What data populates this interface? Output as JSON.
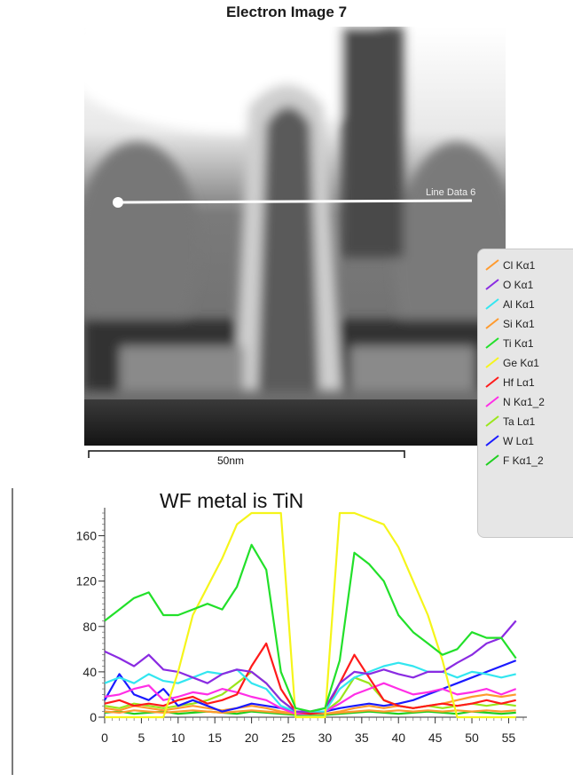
{
  "image_title": "Electron Image 7",
  "line_label": "Line Data 6",
  "scale_bar_label": "50nm",
  "annotation": "WF metal is TiN",
  "legend": [
    {
      "label": "Cl Kα1",
      "color": "#ff9a2e"
    },
    {
      "label": "O Kα1",
      "color": "#8a2be2"
    },
    {
      "label": "Al Kα1",
      "color": "#33e6f0"
    },
    {
      "label": "Si Kα1",
      "color": "#ff9a2e"
    },
    {
      "label": "Ti Kα1",
      "color": "#22e02a"
    },
    {
      "label": "Ge Kα1",
      "color": "#f5f51a"
    },
    {
      "label": "Hf Lα1",
      "color": "#ff1a1a"
    },
    {
      "label": "N Kα1_2",
      "color": "#ff2ee6"
    },
    {
      "label": "Ta Lα1",
      "color": "#9ae61a"
    },
    {
      "label": "W Lα1",
      "color": "#1a1aff"
    },
    {
      "label": "F Kα1_2",
      "color": "#1ecf1e"
    }
  ],
  "chart_data": {
    "type": "line",
    "title": "",
    "xlabel": "",
    "ylabel": "",
    "xlim": [
      0,
      57
    ],
    "ylim": [
      0,
      180
    ],
    "x_ticks": [
      0,
      5,
      10,
      15,
      20,
      25,
      30,
      35,
      40,
      45,
      50,
      55
    ],
    "y_ticks": [
      0,
      40,
      80,
      120,
      160
    ],
    "x": [
      0,
      2,
      4,
      6,
      8,
      10,
      12,
      14,
      16,
      18,
      20,
      22,
      24,
      26,
      28,
      30,
      32,
      34,
      36,
      38,
      40,
      42,
      44,
      46,
      48,
      50,
      52,
      54,
      56
    ],
    "series": [
      {
        "name": "Ti Kα1",
        "color": "#22e02a",
        "values": [
          85,
          95,
          105,
          110,
          90,
          90,
          95,
          100,
          95,
          115,
          152,
          130,
          40,
          8,
          5,
          8,
          50,
          145,
          135,
          120,
          90,
          75,
          65,
          55,
          60,
          75,
          70,
          70,
          52
        ]
      },
      {
        "name": "Ge Kα1",
        "color": "#f5f51a",
        "values": [
          0,
          0,
          0,
          0,
          0,
          40,
          90,
          115,
          140,
          170,
          185,
          180,
          180,
          0,
          0,
          0,
          180,
          180,
          175,
          170,
          150,
          120,
          90,
          50,
          0,
          0,
          0,
          0,
          0
        ]
      },
      {
        "name": "O Kα1",
        "color": "#8a2be2",
        "values": [
          58,
          52,
          45,
          55,
          42,
          40,
          35,
          30,
          38,
          42,
          40,
          30,
          15,
          5,
          5,
          8,
          30,
          40,
          38,
          42,
          38,
          35,
          40,
          40,
          48,
          55,
          65,
          70,
          85
        ]
      },
      {
        "name": "Al Kα1",
        "color": "#33e6f0",
        "values": [
          30,
          35,
          30,
          38,
          32,
          30,
          35,
          40,
          38,
          42,
          30,
          25,
          10,
          5,
          5,
          5,
          25,
          35,
          40,
          45,
          48,
          45,
          40,
          40,
          35,
          40,
          38,
          35,
          38
        ]
      },
      {
        "name": "Hf Lα1",
        "color": "#ff1a1a",
        "values": [
          12,
          15,
          10,
          12,
          10,
          15,
          18,
          12,
          15,
          20,
          45,
          65,
          25,
          5,
          3,
          5,
          30,
          55,
          35,
          15,
          10,
          8,
          10,
          12,
          10,
          12,
          15,
          12,
          15
        ]
      },
      {
        "name": "N Kα1_2",
        "color": "#ff2ee6",
        "values": [
          18,
          20,
          25,
          28,
          15,
          18,
          22,
          20,
          25,
          22,
          18,
          15,
          8,
          3,
          3,
          5,
          12,
          20,
          25,
          30,
          25,
          20,
          22,
          25,
          20,
          22,
          25,
          20,
          25
        ]
      },
      {
        "name": "W Lα1",
        "color": "#1a1aff",
        "values": [
          15,
          38,
          20,
          15,
          25,
          10,
          15,
          10,
          5,
          8,
          12,
          10,
          8,
          5,
          3,
          5,
          8,
          10,
          12,
          10,
          12,
          15,
          20,
          25,
          30,
          35,
          40,
          45,
          50
        ]
      },
      {
        "name": "Ta Lα1",
        "color": "#9ae61a",
        "values": [
          10,
          8,
          12,
          10,
          8,
          10,
          12,
          15,
          20,
          30,
          40,
          30,
          15,
          5,
          3,
          5,
          15,
          35,
          30,
          15,
          10,
          8,
          10,
          8,
          10,
          12,
          10,
          12,
          10
        ]
      },
      {
        "name": "Si Kα1",
        "color": "#ff9a2e",
        "values": [
          8,
          6,
          10,
          8,
          6,
          8,
          10,
          8,
          6,
          8,
          10,
          8,
          5,
          3,
          3,
          3,
          5,
          8,
          10,
          8,
          10,
          8,
          10,
          12,
          15,
          18,
          20,
          18,
          20
        ]
      },
      {
        "name": "Cl Kα1",
        "color": "#ff9a2e",
        "values": [
          5,
          4,
          6,
          5,
          4,
          5,
          6,
          5,
          4,
          5,
          6,
          5,
          4,
          3,
          3,
          3,
          4,
          5,
          6,
          5,
          6,
          5,
          6,
          5,
          6,
          5,
          6,
          5,
          6
        ]
      },
      {
        "name": "F Kα1_2",
        "color": "#1ecf1e",
        "values": [
          4,
          5,
          3,
          4,
          5,
          3,
          4,
          5,
          4,
          3,
          5,
          4,
          3,
          2,
          2,
          2,
          3,
          4,
          5,
          4,
          3,
          4,
          5,
          4,
          3,
          5,
          4,
          3,
          4
        ]
      }
    ]
  }
}
